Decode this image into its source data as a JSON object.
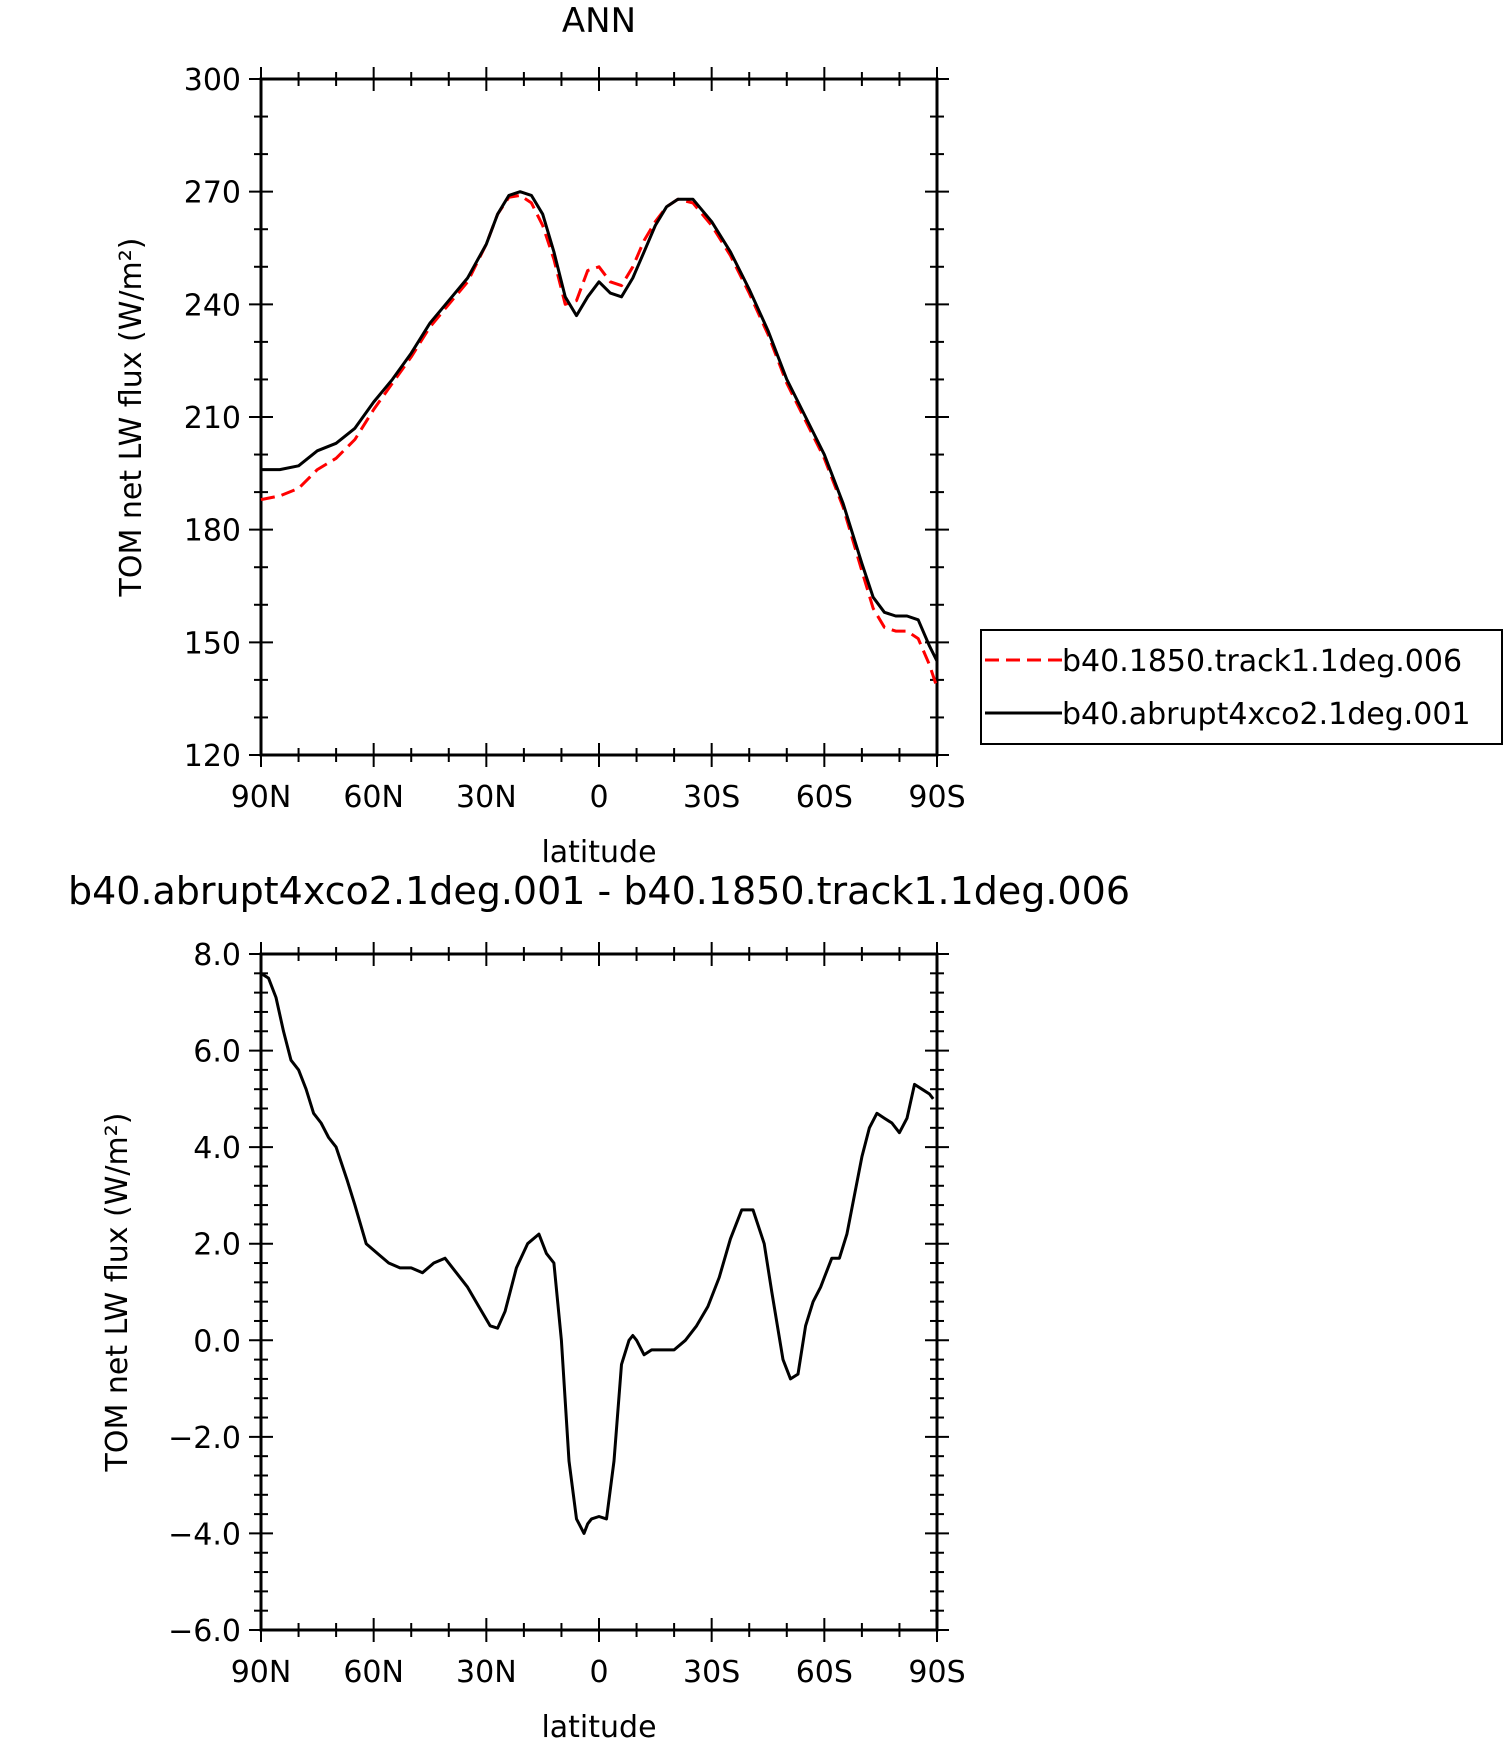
{
  "chart_data": [
    {
      "type": "line",
      "title": "ANN",
      "xlabel": "latitude",
      "ylabel": "TOM net LW flux (W/m²)",
      "xlim": [
        90,
        -90
      ],
      "ylim": [
        120,
        300
      ],
      "xticks": [
        "90N",
        "60N",
        "30N",
        "0",
        "30S",
        "60S",
        "90S"
      ],
      "yticks": [
        "120",
        "150",
        "180",
        "210",
        "240",
        "270",
        "300"
      ],
      "legend_position": "right",
      "series": [
        {
          "name": "b40.1850.track1.1deg.006",
          "color": "#ff0000",
          "dash": "dashed",
          "x": [
            90,
            85,
            80,
            75,
            70,
            65,
            60,
            55,
            50,
            45,
            40,
            35,
            30,
            27,
            24,
            21,
            18,
            15,
            12,
            9,
            6,
            3,
            0,
            -3,
            -6,
            -9,
            -12,
            -15,
            -18,
            -21,
            -25,
            -30,
            -35,
            -40,
            -45,
            -50,
            -55,
            -60,
            -65,
            -70,
            -73,
            -76,
            -79,
            -82,
            -85,
            -88,
            -90
          ],
          "values": [
            188,
            189,
            191,
            196,
            199,
            204,
            212,
            219,
            226,
            234,
            240,
            246,
            256,
            264,
            268.5,
            269,
            267,
            261,
            252,
            240,
            241,
            249,
            250,
            246,
            245,
            250,
            257,
            262,
            266,
            268,
            267,
            261,
            253,
            243,
            232,
            219,
            209,
            199,
            186,
            169,
            159,
            154,
            153,
            153,
            151,
            144,
            138
          ]
        },
        {
          "name": "b40.abrupt4xco2.1deg.001",
          "color": "#000000",
          "dash": "solid",
          "x": [
            90,
            85,
            80,
            75,
            70,
            65,
            60,
            55,
            50,
            45,
            40,
            35,
            30,
            27,
            24,
            21,
            18,
            15,
            12,
            9,
            6,
            3,
            0,
            -3,
            -6,
            -9,
            -12,
            -15,
            -18,
            -21,
            -25,
            -30,
            -35,
            -40,
            -45,
            -50,
            -55,
            -60,
            -65,
            -70,
            -73,
            -76,
            -79,
            -82,
            -85,
            -88,
            -90
          ],
          "values": [
            196,
            196,
            197,
            201,
            203,
            207,
            214,
            220,
            227,
            235,
            241,
            247,
            256,
            264,
            269,
            270,
            269,
            264,
            254,
            242,
            237,
            242,
            246,
            243,
            242,
            247,
            254,
            261,
            266,
            268,
            268,
            262,
            254,
            244,
            233,
            220,
            210,
            200,
            187,
            171,
            162,
            158,
            157,
            157,
            156,
            149,
            145
          ]
        }
      ]
    },
    {
      "type": "line",
      "title": "b40.abrupt4xco2.1deg.001 - b40.1850.track1.1deg.006",
      "xlabel": "latitude",
      "ylabel": "TOM net LW flux (W/m²)",
      "xlim": [
        90,
        -90
      ],
      "ylim": [
        -6,
        8
      ],
      "xticks": [
        "90N",
        "60N",
        "30N",
        "0",
        "30S",
        "60S",
        "90S"
      ],
      "yticks": [
        "−6.0",
        "−4.0",
        "−2.0",
        "0.0",
        "2.0",
        "4.0",
        "6.0",
        "8.0"
      ],
      "series": [
        {
          "color": "#000000",
          "dash": "solid",
          "x": [
            90,
            88,
            86,
            84,
            82,
            80,
            78,
            76,
            74,
            72,
            70,
            67,
            65,
            62,
            59,
            56,
            53,
            50,
            47,
            44,
            41,
            38,
            35,
            32,
            29,
            27,
            25,
            22,
            19,
            16,
            14,
            12,
            10,
            8,
            6,
            4,
            3,
            2,
            0,
            -2,
            -4,
            -6,
            -8,
            -9,
            -10,
            -12,
            -14,
            -17,
            -20,
            -23,
            -26,
            -29,
            -32,
            -35,
            -38,
            -41,
            -44,
            -46,
            -49,
            -51,
            -53,
            -55,
            -57,
            -59,
            -60,
            -62,
            -64,
            -66,
            -68,
            -70,
            -72,
            -74,
            -76,
            -78,
            -80,
            -82,
            -84,
            -86,
            -88,
            -89
          ],
          "values": [
            7.6,
            7.5,
            7.1,
            6.4,
            5.8,
            5.6,
            5.2,
            4.7,
            4.5,
            4.2,
            4.0,
            3.3,
            2.8,
            2.0,
            1.8,
            1.6,
            1.5,
            1.5,
            1.4,
            1.6,
            1.7,
            1.4,
            1.1,
            0.7,
            0.3,
            0.25,
            0.6,
            1.5,
            2.0,
            2.2,
            1.8,
            1.6,
            0.0,
            -2.5,
            -3.7,
            -4.0,
            -3.8,
            -3.7,
            -3.65,
            -3.7,
            -2.5,
            -0.5,
            0.0,
            0.1,
            0.0,
            -0.3,
            -0.2,
            -0.2,
            -0.2,
            0.0,
            0.3,
            0.7,
            1.3,
            2.1,
            2.7,
            2.7,
            2.0,
            1.0,
            -0.4,
            -0.8,
            -0.7,
            0.3,
            0.8,
            1.1,
            1.3,
            1.7,
            1.7,
            2.2,
            3.0,
            3.8,
            4.4,
            4.7,
            4.6,
            4.5,
            4.3,
            4.6,
            5.3,
            5.2,
            5.1,
            5.0
          ]
        }
      ]
    }
  ]
}
